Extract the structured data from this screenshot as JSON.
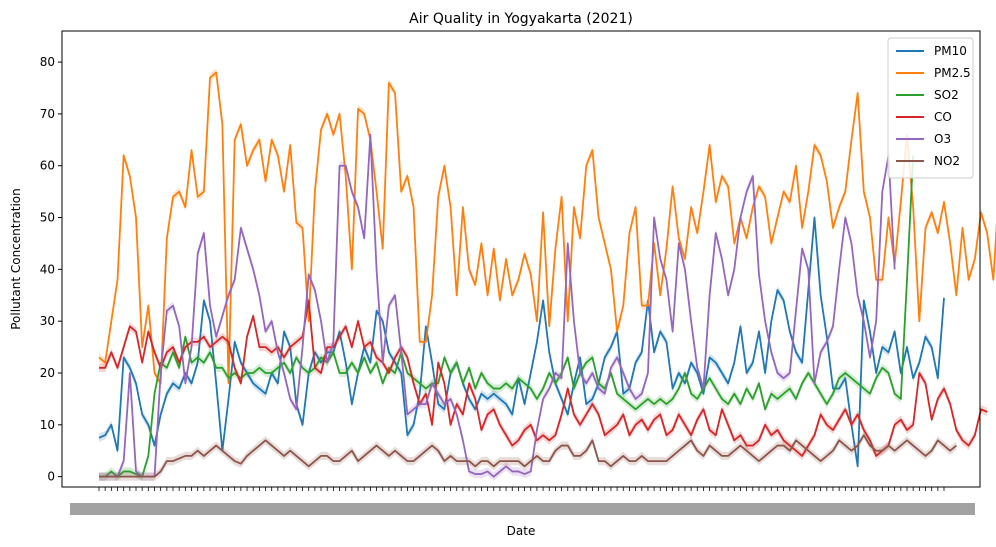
{
  "chart_data": {
    "type": "line",
    "title": "Air Quality in Yogyakarta (2021)",
    "xlabel": "Date",
    "ylabel": "Pollutant Concentration",
    "ylim": [
      -2,
      86
    ],
    "yticks": [
      0,
      10,
      20,
      30,
      40,
      50,
      60,
      70,
      80
    ],
    "x_note": "x tick labels are overlapping dates (one per day, unreadable)",
    "legend_position": "top-right",
    "colors": {
      "PM10": "#1f77b4",
      "PM2.5": "#ff7f0e",
      "SO2": "#2ca02c",
      "CO": "#d62728",
      "O3": "#9467bd",
      "NO2": "#8c564b"
    },
    "series": [
      {
        "name": "PM10",
        "values": [
          7.5,
          8,
          10,
          5,
          23,
          21,
          18,
          12,
          10,
          6,
          12,
          16,
          18,
          17,
          20,
          18,
          22,
          34,
          30,
          18,
          5,
          15,
          26,
          22,
          20,
          18,
          17,
          16,
          20,
          18,
          28,
          25,
          14,
          10,
          20,
          24,
          22,
          24,
          24,
          28,
          22,
          14,
          20,
          25,
          22,
          32,
          30,
          24,
          22,
          20,
          8,
          10,
          16,
          29,
          22,
          14,
          13,
          20,
          22,
          18,
          15,
          13,
          16,
          15,
          16,
          15,
          14,
          12,
          19,
          14,
          20,
          26,
          34,
          24,
          18,
          15,
          12,
          18,
          23,
          14,
          15,
          18,
          23,
          25,
          28,
          16,
          17,
          22,
          24,
          34,
          24,
          28,
          26,
          17,
          20,
          18,
          22,
          20,
          16,
          23,
          22,
          20,
          18,
          22,
          29,
          20,
          22,
          28,
          20,
          30,
          36,
          34,
          28,
          24,
          22,
          36,
          50,
          35,
          27,
          17,
          17,
          19,
          10,
          2,
          34,
          28,
          20,
          25,
          24,
          28,
          20,
          25,
          19,
          22,
          27,
          25,
          19,
          34.5
        ]
      },
      {
        "name": "PM2.5",
        "values": [
          23,
          22,
          30,
          38,
          62,
          58,
          50,
          25,
          33,
          20,
          18,
          46,
          54,
          55,
          52,
          63,
          54,
          55,
          77,
          78,
          68,
          18,
          65,
          68,
          60,
          63,
          65,
          57,
          65,
          62,
          55,
          64,
          49,
          48,
          30,
          55,
          67,
          70,
          66,
          70,
          58,
          40,
          71,
          70,
          65,
          55,
          44,
          76,
          74,
          55,
          58,
          52,
          26,
          26,
          35,
          54,
          60,
          52,
          35,
          52,
          40,
          37,
          45,
          35,
          44,
          34,
          42,
          35,
          38,
          43,
          39,
          30,
          51,
          29,
          44,
          54,
          30,
          52,
          46,
          60,
          63,
          50,
          45,
          40,
          28,
          33,
          47,
          52,
          33,
          33,
          45,
          35,
          44,
          56,
          46,
          42,
          52,
          47,
          55,
          64,
          53,
          58,
          56,
          45,
          50,
          46,
          52,
          56,
          54,
          45,
          50,
          55,
          53,
          60,
          48,
          55,
          64,
          62,
          57,
          48,
          52,
          55,
          65,
          74,
          55,
          50,
          38,
          38,
          50,
          41,
          53,
          66,
          52,
          30,
          48,
          51,
          47,
          53,
          45,
          35,
          48,
          38,
          42,
          51,
          47,
          38,
          57
        ]
      },
      {
        "name": "SO2",
        "values": [
          0,
          0,
          1,
          0,
          1,
          1,
          0.5,
          0,
          4,
          16,
          22,
          21,
          24,
          21,
          27,
          22,
          23,
          22,
          24,
          21,
          21,
          19,
          20,
          19,
          20,
          20,
          21,
          20,
          20,
          21,
          22,
          20,
          23,
          21,
          20,
          21,
          23,
          22,
          24,
          20,
          20,
          22,
          20,
          23,
          20,
          22,
          18,
          21,
          20,
          24,
          20,
          19,
          18,
          17,
          18,
          18,
          23,
          20,
          22,
          18,
          21,
          17,
          20,
          18,
          17,
          17,
          18,
          17,
          19,
          18,
          17,
          15,
          17,
          20,
          18,
          20,
          23,
          17,
          20,
          22,
          23,
          18,
          17,
          20,
          16,
          15,
          14,
          13,
          14,
          15,
          14,
          15,
          14,
          15,
          17,
          20,
          16,
          15,
          17,
          19,
          17,
          15,
          14,
          16,
          14,
          17,
          15,
          18,
          13,
          16,
          15,
          16,
          17,
          15,
          18,
          20,
          18,
          16,
          14,
          16,
          19,
          20,
          19,
          18,
          17,
          16,
          19,
          21,
          20,
          16,
          15,
          38,
          62
        ]
      },
      {
        "name": "CO",
        "values": [
          21,
          21,
          24,
          21,
          25,
          29,
          28,
          22,
          28,
          24,
          21,
          24,
          25,
          22,
          25,
          26,
          26,
          27,
          25,
          26,
          27,
          26,
          21,
          18,
          27,
          31,
          25,
          25,
          24,
          25,
          23,
          25,
          26,
          27,
          34,
          21,
          20,
          25,
          25,
          27,
          29,
          25,
          30,
          25,
          26,
          23,
          22,
          20,
          23,
          25,
          23,
          18,
          14,
          16,
          10,
          22,
          18,
          10,
          14,
          12,
          18,
          15,
          9,
          12,
          13,
          10,
          8,
          6,
          7,
          9,
          10,
          7,
          8,
          7,
          8,
          12,
          17,
          12,
          10,
          12,
          14,
          12,
          8,
          9,
          10,
          12,
          8,
          10,
          11,
          9,
          11,
          12,
          8,
          9,
          12,
          10,
          8,
          11,
          13,
          9,
          8,
          13,
          10,
          7,
          8,
          6,
          6,
          7,
          10,
          8,
          9,
          7,
          6,
          5,
          4,
          6,
          8,
          12,
          10,
          9,
          11,
          13,
          10,
          12,
          9,
          7,
          4,
          5,
          6,
          10,
          11,
          9,
          10,
          20,
          18,
          11,
          15,
          17,
          14,
          9,
          7,
          6,
          8,
          13,
          12.5
        ]
      },
      {
        "name": "O3",
        "values": [
          0,
          0,
          0,
          0,
          3,
          20,
          1,
          0,
          0,
          0,
          20,
          32,
          33,
          29,
          18,
          25,
          43,
          47,
          33,
          27,
          31,
          35,
          38,
          48,
          44,
          40,
          35,
          28,
          30,
          24,
          20,
          15,
          13,
          25,
          39,
          36,
          30,
          22,
          26,
          60,
          60,
          55,
          52,
          46,
          66,
          40,
          22,
          33,
          35,
          24,
          12,
          13,
          14,
          14,
          18,
          16,
          14,
          15,
          12,
          7,
          1,
          0.5,
          0.5,
          1,
          0,
          1,
          2,
          1,
          1,
          0.5,
          1,
          9,
          15,
          17,
          20,
          19,
          45,
          30,
          20,
          18,
          20,
          17,
          16,
          21,
          23,
          20,
          17,
          15,
          16,
          20,
          50,
          42,
          38,
          28,
          45,
          40,
          30,
          21,
          17,
          35,
          47,
          42,
          35,
          40,
          50,
          55,
          58,
          39,
          30,
          24,
          20,
          19,
          20,
          32,
          44,
          40,
          18,
          24,
          26,
          29,
          40,
          50,
          45,
          35,
          30,
          23,
          30,
          55,
          62,
          40
        ]
      },
      {
        "name": "NO2",
        "values": [
          0,
          0,
          0,
          0,
          0,
          0,
          0,
          0,
          0,
          0,
          1,
          3,
          3,
          3.5,
          4,
          4,
          5,
          4,
          5,
          6,
          5,
          4,
          3,
          2.5,
          4,
          5,
          6,
          7,
          6,
          5,
          4,
          5,
          4,
          3,
          2,
          3,
          4,
          4,
          3,
          3,
          4,
          5,
          3,
          4,
          5,
          6,
          5,
          4,
          5,
          4,
          3,
          3,
          4,
          5,
          6,
          5,
          3,
          4,
          3,
          3,
          3,
          2,
          3,
          3,
          2,
          3,
          3,
          3,
          3,
          2,
          3,
          4,
          3,
          3,
          5,
          6,
          6,
          4,
          4,
          5,
          7,
          3,
          3,
          2,
          3,
          4,
          3,
          3,
          4,
          3,
          3,
          3,
          3,
          4,
          5,
          6,
          7,
          5,
          4,
          6,
          5,
          4,
          4,
          5,
          6,
          5,
          4,
          3,
          4,
          5,
          6,
          6,
          5,
          7,
          6,
          5,
          4,
          3,
          4,
          5,
          7,
          6,
          5,
          6,
          8,
          6,
          5,
          5,
          6,
          5,
          6,
          7,
          6,
          5,
          4,
          5,
          7,
          6,
          5,
          6
        ]
      }
    ]
  }
}
